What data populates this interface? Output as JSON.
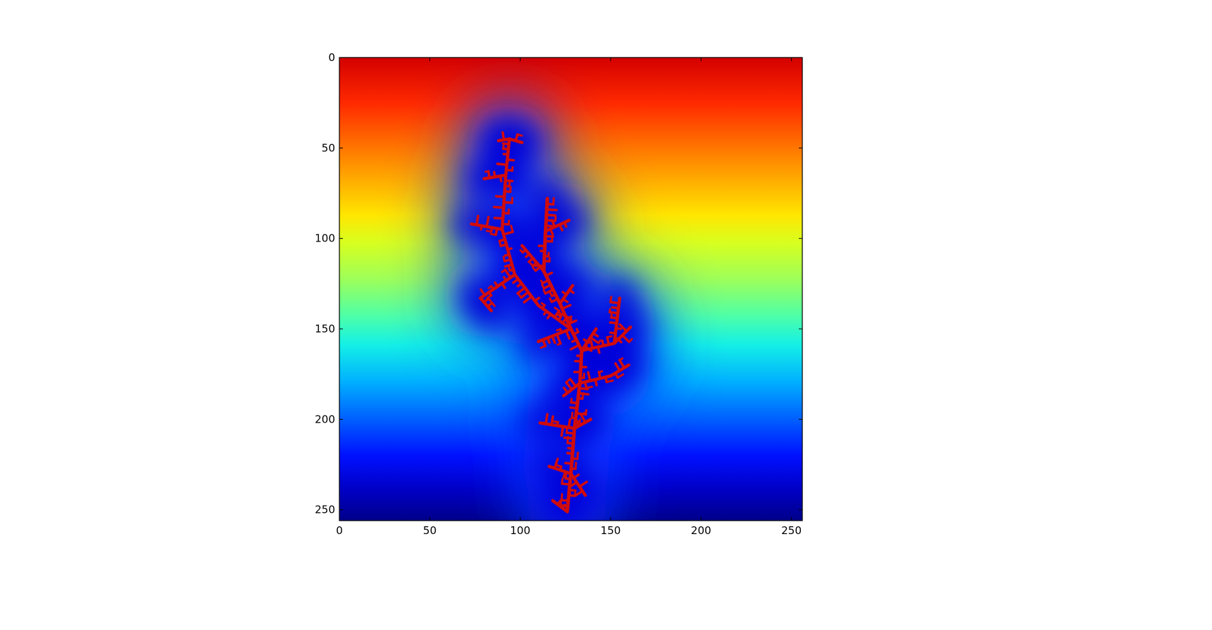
{
  "chart_data": {
    "type": "heatmap",
    "colormap": "jet",
    "grid": false,
    "x_ticks": [
      "0",
      "50",
      "100",
      "150",
      "200",
      "250"
    ],
    "y_ticks": [
      "0",
      "50",
      "100",
      "150",
      "200",
      "250"
    ],
    "x_tick_values": [
      0,
      50,
      100,
      150,
      200,
      250
    ],
    "y_tick_values": [
      0,
      50,
      100,
      150,
      200,
      250
    ],
    "xlim": [
      0,
      256
    ],
    "ylim": [
      256,
      0
    ],
    "y_axis_inverted": true,
    "field_value_top": 1.0,
    "field_value_cluster": 0.0,
    "overlay": {
      "type": "dendritic-cluster",
      "color": "#d10b0b",
      "trunk": [
        {
          "x": 126,
          "y": 251
        },
        {
          "x": 128,
          "y": 230
        },
        {
          "x": 130,
          "y": 205
        },
        {
          "x": 133,
          "y": 180
        },
        {
          "x": 134,
          "y": 162
        },
        {
          "x": 128,
          "y": 150
        },
        {
          "x": 122,
          "y": 136
        },
        {
          "x": 113,
          "y": 118
        },
        {
          "x": 114,
          "y": 96
        },
        {
          "x": 115,
          "y": 78
        }
      ],
      "branches": [
        {
          "from": {
            "x": 128,
            "y": 150
          },
          "to": {
            "x": 110,
            "y": 137
          }
        },
        {
          "from": {
            "x": 110,
            "y": 137
          },
          "to": {
            "x": 97,
            "y": 120
          }
        },
        {
          "from": {
            "x": 97,
            "y": 120
          },
          "to": {
            "x": 90,
            "y": 95
          }
        },
        {
          "from": {
            "x": 90,
            "y": 95
          },
          "to": {
            "x": 92,
            "y": 65
          }
        },
        {
          "from": {
            "x": 92,
            "y": 65
          },
          "to": {
            "x": 94,
            "y": 45
          }
        },
        {
          "from": {
            "x": 94,
            "y": 45
          },
          "to": {
            "x": 88,
            "y": 46
          }
        },
        {
          "from": {
            "x": 94,
            "y": 45
          },
          "to": {
            "x": 101,
            "y": 47
          }
        },
        {
          "from": {
            "x": 92,
            "y": 65
          },
          "to": {
            "x": 80,
            "y": 67
          }
        },
        {
          "from": {
            "x": 90,
            "y": 95
          },
          "to": {
            "x": 73,
            "y": 92
          }
        },
        {
          "from": {
            "x": 97,
            "y": 120
          },
          "to": {
            "x": 78,
            "y": 133
          }
        },
        {
          "from": {
            "x": 78,
            "y": 133
          },
          "to": {
            "x": 84,
            "y": 140
          }
        },
        {
          "from": {
            "x": 134,
            "y": 162
          },
          "to": {
            "x": 152,
            "y": 158
          }
        },
        {
          "from": {
            "x": 152,
            "y": 158
          },
          "to": {
            "x": 155,
            "y": 133
          }
        },
        {
          "from": {
            "x": 152,
            "y": 158
          },
          "to": {
            "x": 161,
            "y": 149
          }
        },
        {
          "from": {
            "x": 133,
            "y": 180
          },
          "to": {
            "x": 150,
            "y": 176
          }
        },
        {
          "from": {
            "x": 150,
            "y": 176
          },
          "to": {
            "x": 160,
            "y": 170
          }
        },
        {
          "from": {
            "x": 128,
            "y": 150
          },
          "to": {
            "x": 110,
            "y": 157
          }
        },
        {
          "from": {
            "x": 130,
            "y": 205
          },
          "to": {
            "x": 111,
            "y": 202
          }
        },
        {
          "from": {
            "x": 130,
            "y": 205
          },
          "to": {
            "x": 139,
            "y": 200
          }
        },
        {
          "from": {
            "x": 128,
            "y": 230
          },
          "to": {
            "x": 116,
            "y": 226
          }
        },
        {
          "from": {
            "x": 128,
            "y": 230
          },
          "to": {
            "x": 136,
            "y": 242
          }
        },
        {
          "from": {
            "x": 126,
            "y": 251
          },
          "to": {
            "x": 118,
            "y": 245
          }
        },
        {
          "from": {
            "x": 113,
            "y": 118
          },
          "to": {
            "x": 101,
            "y": 104
          }
        },
        {
          "from": {
            "x": 114,
            "y": 96
          },
          "to": {
            "x": 127,
            "y": 90
          }
        },
        {
          "from": {
            "x": 122,
            "y": 136
          },
          "to": {
            "x": 129,
            "y": 126
          }
        },
        {
          "from": {
            "x": 133,
            "y": 180
          },
          "to": {
            "x": 124,
            "y": 187
          }
        },
        {
          "from": {
            "x": 134,
            "y": 162
          },
          "to": {
            "x": 142,
            "y": 150
          }
        }
      ]
    }
  },
  "colors": {
    "frame": "#000000",
    "background": "#ffffff"
  }
}
